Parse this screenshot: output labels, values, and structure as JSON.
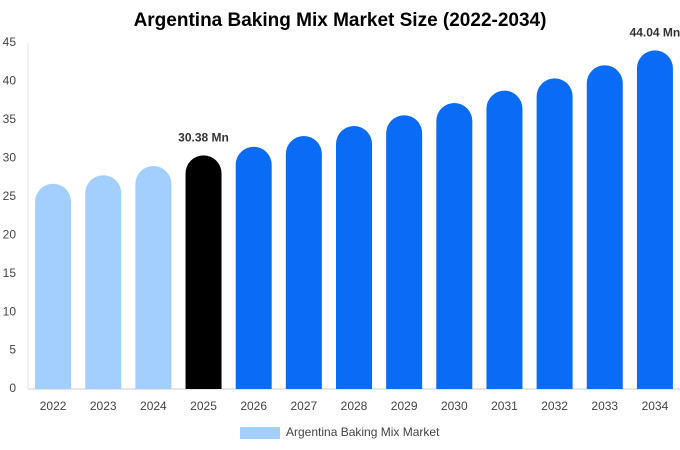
{
  "chart_data": {
    "type": "bar",
    "title": "Argentina Baking Mix Market Size (2022-2034)",
    "categories": [
      "2022",
      "2023",
      "2024",
      "2025",
      "2026",
      "2027",
      "2028",
      "2029",
      "2030",
      "2031",
      "2032",
      "2033",
      "2034"
    ],
    "series": [
      {
        "name": "Argentina Baking Mix Market",
        "color": "#a3cffe",
        "values": [
          26.7,
          27.8,
          29.0,
          30.38,
          31.5,
          32.9,
          34.2,
          35.6,
          37.2,
          38.8,
          40.4,
          42.1,
          44.04
        ],
        "value_labels": [
          null,
          null,
          null,
          "30.38 Mn",
          null,
          null,
          null,
          null,
          null,
          null,
          null,
          null,
          "44.04 Mn"
        ],
        "colors": [
          "#a3cffe",
          "#a3cffe",
          "#a3cffe",
          "#000000",
          "#0a6cf5",
          "#0a6cf5",
          "#0a6cf5",
          "#0a6cf5",
          "#0a6cf5",
          "#0a6cf5",
          "#0a6cf5",
          "#0a6cf5",
          "#0a6cf5"
        ]
      }
    ],
    "ylim": [
      0,
      45
    ],
    "yticks": [
      0,
      5,
      10,
      15,
      20,
      25,
      30,
      35,
      40,
      45
    ],
    "grid": false
  }
}
